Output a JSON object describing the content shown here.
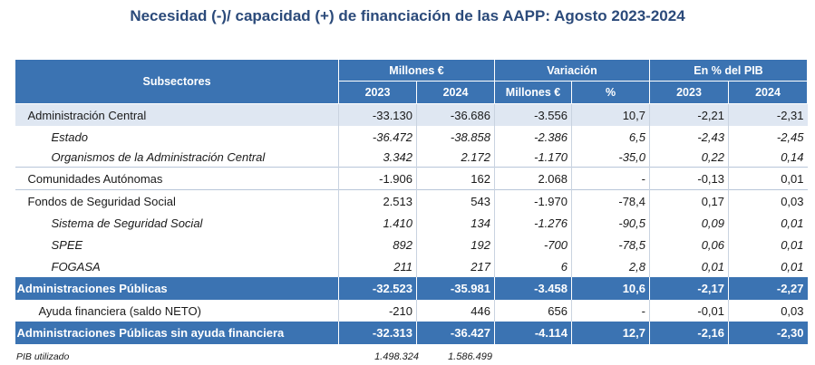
{
  "title": "Necesidad (-)/ capacidad (+) de financiación de las AAPP:  Agosto 2023-2024",
  "header": {
    "subsectores": "Subsectores",
    "millones": "Millones €",
    "variacion": "Variación",
    "pct_pib": "En % del PIB",
    "y2023": "2023",
    "y2024": "2024",
    "var_millones": "Millones €",
    "var_pct": "%",
    "pib2023": "2023",
    "pib2024": "2024"
  },
  "rows": [
    {
      "label": "Administración Central",
      "v2023": "-33.130",
      "v2024": "-36.686",
      "var": "-3.556",
      "pct": "10,7",
      "pib2023": "-2,21",
      "pib2024": "-2,31"
    },
    {
      "label": "Estado",
      "v2023": "-36.472",
      "v2024": "-38.858",
      "var": "-2.386",
      "pct": "6,5",
      "pib2023": "-2,43",
      "pib2024": "-2,45"
    },
    {
      "label": "Organismos de la Administración Central",
      "v2023": "3.342",
      "v2024": "2.172",
      "var": "-1.170",
      "pct": "-35,0",
      "pib2023": "0,22",
      "pib2024": "0,14"
    },
    {
      "label": "Comunidades Autónomas",
      "v2023": "-1.906",
      "v2024": "162",
      "var": "2.068",
      "pct": "-",
      "pib2023": "-0,13",
      "pib2024": "0,01"
    },
    {
      "label": "Fondos de Seguridad Social",
      "v2023": "2.513",
      "v2024": "543",
      "var": "-1.970",
      "pct": "-78,4",
      "pib2023": "0,17",
      "pib2024": "0,03"
    },
    {
      "label": "Sistema de Seguridad Social",
      "v2023": "1.410",
      "v2024": "134",
      "var": "-1.276",
      "pct": "-90,5",
      "pib2023": "0,09",
      "pib2024": "0,01"
    },
    {
      "label": "SPEE",
      "v2023": "892",
      "v2024": "192",
      "var": "-700",
      "pct": "-78,5",
      "pib2023": "0,06",
      "pib2024": "0,01"
    },
    {
      "label": "FOGASA",
      "v2023": "211",
      "v2024": "217",
      "var": "6",
      "pct": "2,8",
      "pib2023": "0,01",
      "pib2024": "0,01"
    },
    {
      "label": "Administraciones Públicas",
      "v2023": "-32.523",
      "v2024": "-35.981",
      "var": "-3.458",
      "pct": "10,6",
      "pib2023": "-2,17",
      "pib2024": "-2,27"
    },
    {
      "label": "Ayuda financiera (saldo NETO)",
      "v2023": "-210",
      "v2024": "446",
      "var": "656",
      "pct": "-",
      "pib2023": "-0,01",
      "pib2024": "0,03"
    },
    {
      "label": "Administraciones Públicas sin  ayuda financiera",
      "v2023": "-32.313",
      "v2024": "-36.427",
      "var": "-4.114",
      "pct": "12,7",
      "pib2023": "-2,16",
      "pib2024": "-2,30"
    }
  ],
  "pib": {
    "label": "PIB utilizado",
    "v2023": "1.498.324",
    "v2024": "1.586.499"
  },
  "colors": {
    "header_bg": "#3b73b2",
    "title": "#2b4a7a",
    "row_highlight": "#dfe7f2"
  }
}
